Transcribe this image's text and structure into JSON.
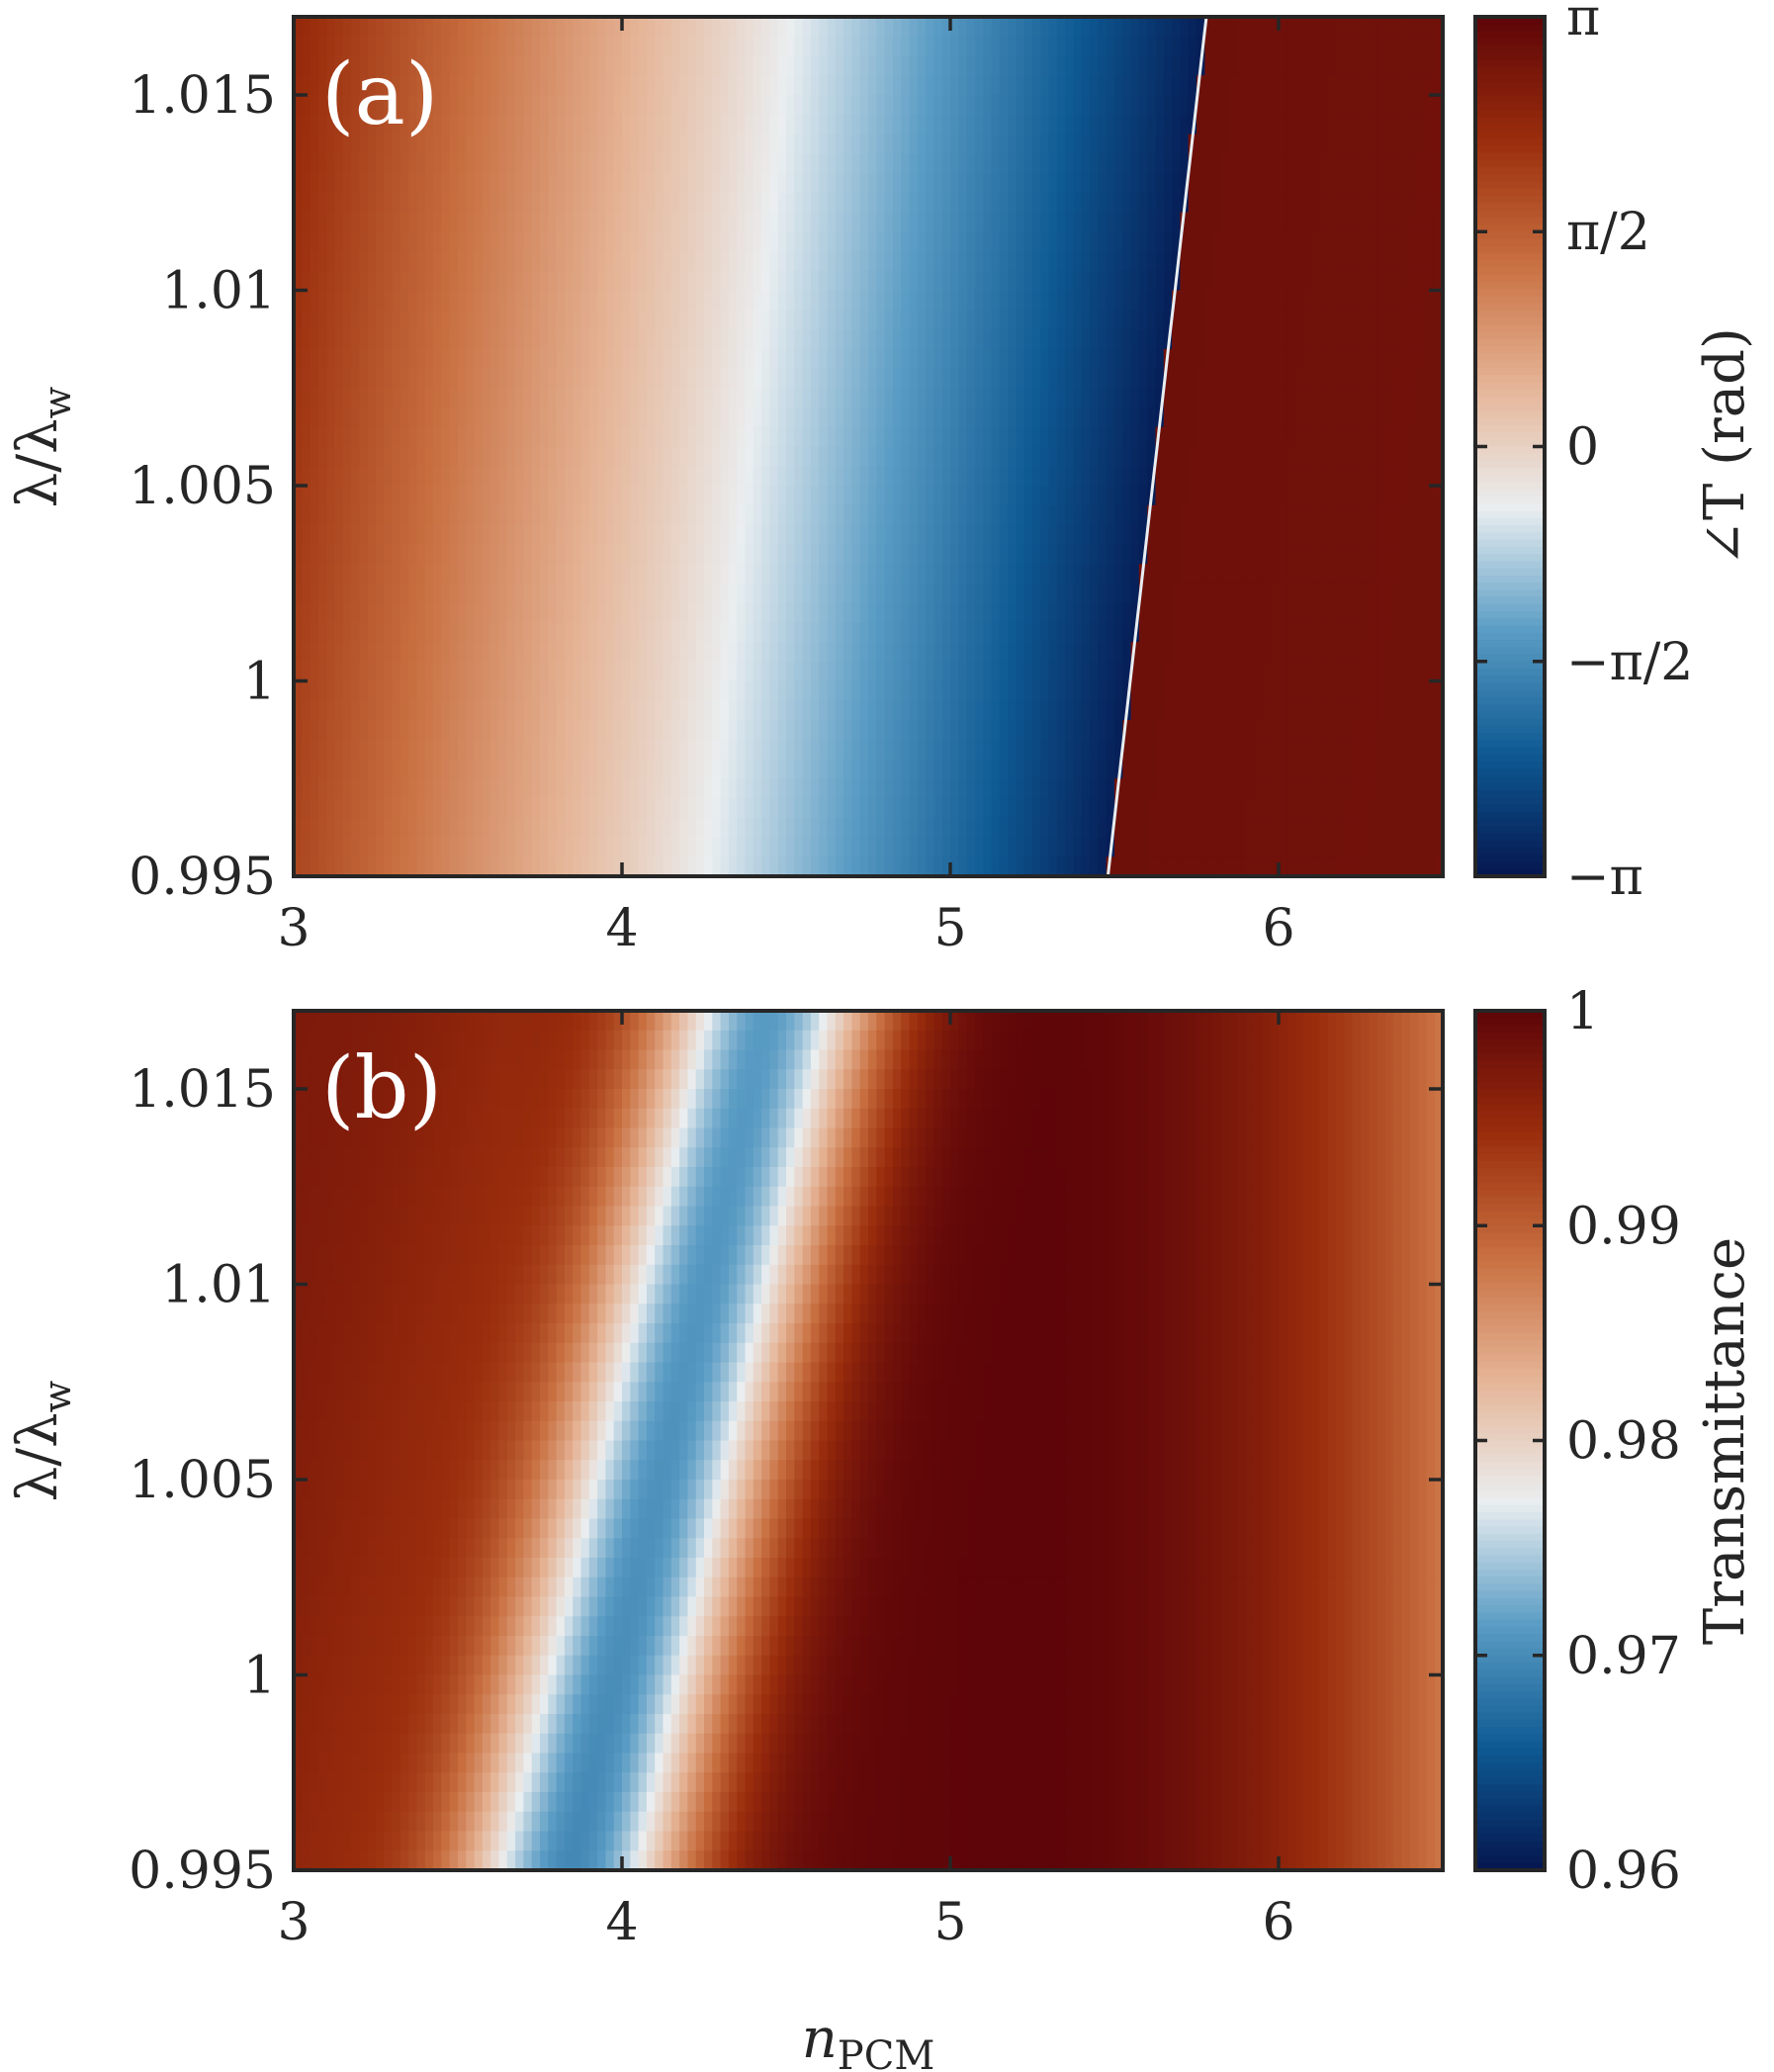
{
  "chart_data": [
    {
      "type": "heatmap",
      "panel_label": "(a)",
      "xlabel": "",
      "ylabel": "λ/λw",
      "xlim": [
        3,
        6.5
      ],
      "ylim": [
        0.995,
        1.017
      ],
      "x_ticks": [
        3,
        4,
        5,
        6
      ],
      "x_tick_labels": [
        "3",
        "4",
        "5",
        "6"
      ],
      "y_ticks": [
        0.995,
        1,
        1.005,
        1.01,
        1.015
      ],
      "y_tick_labels": [
        "0.995",
        "1",
        "1.005",
        "1.01",
        "1.015"
      ],
      "colorbar": {
        "label": "∠T (rad)",
        "min": -3.14159,
        "max": 3.14159,
        "ticks": [
          -3.14159,
          -1.5708,
          0,
          1.5708,
          3.14159
        ],
        "tick_labels": [
          "−π",
          "−π/2",
          "0",
          "π/2",
          "π"
        ],
        "colormap": [
          "#05164f",
          "#0e5a93",
          "#5a9cc4",
          "#eaeef0",
          "#e5b496",
          "#c86f40",
          "#9a2d0c",
          "#5e0509"
        ]
      },
      "description_values": {
        "phase_at_n3": 1.9,
        "phase_zero_crossing_n": 4.05,
        "phase_wrap_n_at_0995": 5.48,
        "phase_wrap_n_at_1017": 5.78,
        "phase_after_wrap": 2.9
      }
    },
    {
      "type": "heatmap",
      "panel_label": "(b)",
      "xlabel": "nPCM",
      "ylabel": "λ/λw",
      "xlim": [
        3,
        6.5
      ],
      "ylim": [
        0.995,
        1.017
      ],
      "x_ticks": [
        3,
        4,
        5,
        6
      ],
      "x_tick_labels": [
        "3",
        "4",
        "5",
        "6"
      ],
      "y_ticks": [
        0.995,
        1,
        1.005,
        1.01,
        1.015
      ],
      "y_tick_labels": [
        "0.995",
        "1",
        "1.005",
        "1.01",
        "1.015"
      ],
      "colorbar": {
        "label": "Transmittance",
        "min": 0.96,
        "max": 1,
        "ticks": [
          0.96,
          0.97,
          0.98,
          0.99,
          1
        ],
        "tick_labels": [
          "0.96",
          "0.97",
          "0.98",
          "0.99",
          "1"
        ],
        "colormap": [
          "#05164f",
          "#0e5a93",
          "#5a9cc4",
          "#eaeef0",
          "#e5b496",
          "#c86f40",
          "#9a2d0c",
          "#5e0509"
        ]
      },
      "description_values": {
        "dip_center_n_at_0995": 3.85,
        "dip_center_n_at_1017": 4.45,
        "dip_min_transmittance": 0.972,
        "plateau_center_n": 5.2,
        "plateau_transmittance": 1.0,
        "edge_transmittance_n65": 0.988
      }
    }
  ]
}
